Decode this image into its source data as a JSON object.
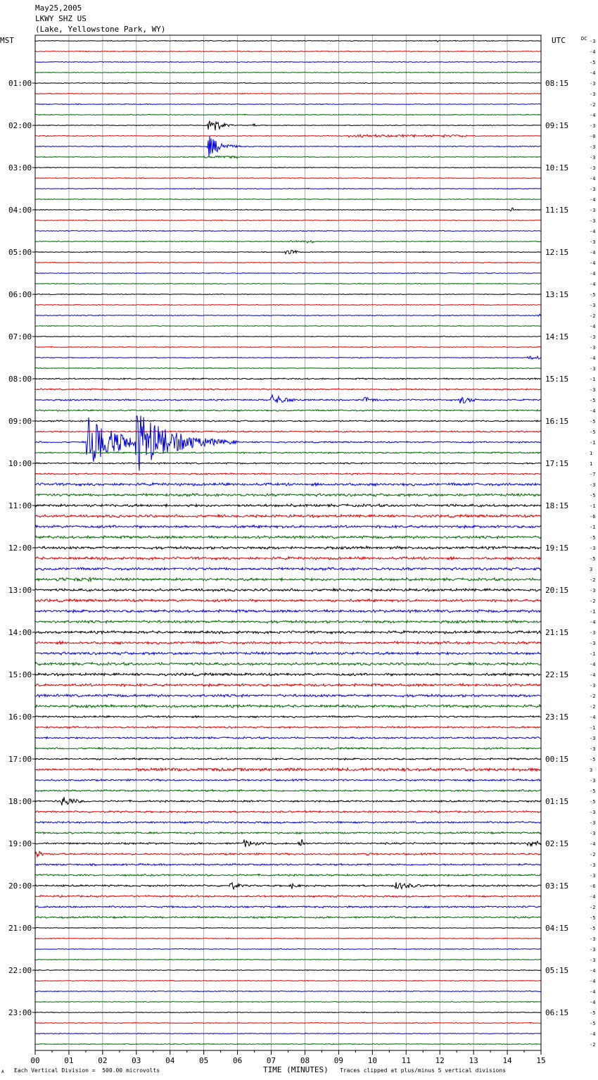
{
  "header": {
    "date": "May25,2005",
    "station": "LKWY SHZ US",
    "location": "(Lake, Yellowstone Park, WY)"
  },
  "labels": {
    "left_tz": "MST",
    "right_tz": "UTC",
    "dc": "DC"
  },
  "footer": {
    "scale_note": "Each Vertical Division =  500.00 microvolts",
    "xlabel": "TIME (MINUTES)",
    "clip_note": "Traces clipped at plus/minus 5 vertical divisions",
    "corner_mark": "A"
  },
  "chart_data": {
    "type": "line",
    "title": "LKWY SHZ US",
    "xlabel": "TIME (MINUTES)",
    "xlim": [
      0,
      15
    ],
    "x_ticks": [
      "00",
      "01",
      "02",
      "03",
      "04",
      "05",
      "06",
      "07",
      "08",
      "09",
      "10",
      "11",
      "12",
      "13",
      "14",
      "15"
    ],
    "trace_minutes": 15,
    "trace_colors": [
      "#000000",
      "#dd0000",
      "#0000dd",
      "#006600"
    ],
    "left_hour_labels": [
      "01:00",
      "02:00",
      "03:00",
      "04:00",
      "05:00",
      "06:00",
      "07:00",
      "08:00",
      "09:00",
      "10:00",
      "11:00",
      "12:00",
      "13:00",
      "14:00",
      "15:00",
      "16:00",
      "17:00",
      "18:00",
      "19:00",
      "20:00",
      "21:00",
      "22:00",
      "23:00"
    ],
    "right_hour_labels": [
      "08:15",
      "09:15",
      "10:15",
      "11:15",
      "12:15",
      "13:15",
      "14:15",
      "15:15",
      "16:15",
      "17:15",
      "18:15",
      "19:15",
      "20:15",
      "21:15",
      "22:15",
      "23:15",
      "00:15",
      "01:15",
      "02:15",
      "03:15",
      "04:15",
      "05:15",
      "06:15"
    ],
    "dc_offsets": [
      "-3",
      "-4",
      "-5",
      "-4",
      "-3",
      "-3",
      "-2",
      "-4",
      "-3",
      "-0",
      "-3",
      "-3",
      "-3",
      "-4",
      "-3",
      "-4",
      "-3",
      "-3",
      "-4",
      "-3",
      "-4",
      "-4",
      "-4",
      "-4",
      "-5",
      "-3",
      "-2",
      "-4",
      "-3",
      "-3",
      "-4",
      "-3",
      "-1",
      "-3",
      "-5",
      "-4",
      "-5",
      "-5",
      "-1",
      "1",
      "1",
      "-7",
      "-3",
      "-5",
      "-1",
      "-6",
      "-1",
      "-5",
      "-3",
      "-5",
      "3",
      "-2",
      "-3",
      "-2",
      "-1",
      "-4",
      "-3",
      "-3",
      "-1",
      "-4",
      "-4",
      "-3",
      "-2",
      "-2",
      "-4",
      "-1",
      "-3",
      "-3",
      "-5",
      "3",
      "-3",
      "-5",
      "-5",
      "-3",
      "-3",
      "-3",
      "-4",
      "-2",
      "-3",
      "-3",
      "-6",
      "-4",
      "-2",
      "-5",
      "-5",
      "-3",
      "-3",
      "-3",
      "-4",
      "-4",
      "-4",
      "-4",
      "-5",
      "-5",
      "-4",
      "-2"
    ],
    "events": [
      {
        "trace": 0,
        "minute": 11.9,
        "amp": 3.0,
        "dur": 0.08,
        "kind": "spike"
      },
      {
        "trace": 6,
        "minute": 6.3,
        "amp": 0.6,
        "dur": 0.05,
        "kind": "spike"
      },
      {
        "trace": 8,
        "minute": 5.15,
        "amp": 18,
        "dur": 0.25,
        "kind": "quake"
      },
      {
        "trace": 8,
        "minute": 6.5,
        "amp": 2.5,
        "dur": 0.1,
        "kind": "spike"
      },
      {
        "trace": 9,
        "minute": 9.3,
        "amp": 2.0,
        "dur": 2.0,
        "kind": "burst"
      },
      {
        "trace": 9,
        "minute": 11.5,
        "amp": 2.0,
        "dur": 1.3,
        "kind": "burst"
      },
      {
        "trace": 10,
        "minute": 5.15,
        "amp": 16,
        "dur": 0.35,
        "kind": "quake"
      },
      {
        "trace": 11,
        "minute": 5.0,
        "amp": 2.0,
        "dur": 1.0,
        "kind": "burst"
      },
      {
        "trace": 16,
        "minute": 14.15,
        "amp": 4.0,
        "dur": 0.1,
        "kind": "spike"
      },
      {
        "trace": 19,
        "minute": 7.5,
        "amp": 2.0,
        "dur": 0.8,
        "kind": "burst"
      },
      {
        "trace": 20,
        "minute": 7.4,
        "amp": 4.0,
        "dur": 0.4,
        "kind": "burst"
      },
      {
        "trace": 26,
        "minute": 14.9,
        "amp": 3.0,
        "dur": 0.15,
        "kind": "burst"
      },
      {
        "trace": 30,
        "minute": 14.6,
        "amp": 2.5,
        "dur": 0.4,
        "kind": "burst"
      },
      {
        "trace": 34,
        "minute": 7.0,
        "amp": 8.0,
        "dur": 0.5,
        "kind": "quake"
      },
      {
        "trace": 34,
        "minute": 9.75,
        "amp": 5.0,
        "dur": 0.35,
        "kind": "quake"
      },
      {
        "trace": 34,
        "minute": 12.6,
        "amp": 6.0,
        "dur": 0.4,
        "kind": "quake"
      },
      {
        "trace": 38,
        "minute": 1.55,
        "amp": 40,
        "dur": 0.8,
        "kind": "quake"
      },
      {
        "trace": 38,
        "minute": 3.0,
        "amp": 45,
        "dur": 1.0,
        "kind": "quake"
      },
      {
        "trace": 38,
        "minute": 14.4,
        "amp": 3.0,
        "dur": 0.1,
        "kind": "spike"
      },
      {
        "trace": 51,
        "minute": 0.6,
        "amp": 3.0,
        "dur": 1.2,
        "kind": "burst"
      },
      {
        "trace": 69,
        "minute": 3.0,
        "amp": 2.5,
        "dur": 12.0,
        "kind": "burst"
      },
      {
        "trace": 72,
        "minute": 0.8,
        "amp": 9.0,
        "dur": 0.35,
        "kind": "quake"
      },
      {
        "trace": 76,
        "minute": 6.2,
        "amp": 6.0,
        "dur": 0.4,
        "kind": "quake"
      },
      {
        "trace": 76,
        "minute": 7.9,
        "amp": 8.0,
        "dur": 0.15,
        "kind": "spike"
      },
      {
        "trace": 76,
        "minute": 14.6,
        "amp": 4.0,
        "dur": 0.5,
        "kind": "burst"
      },
      {
        "trace": 77,
        "minute": 0.1,
        "amp": 5.0,
        "dur": 0.2,
        "kind": "spike"
      },
      {
        "trace": 77,
        "minute": 9.9,
        "amp": 4.0,
        "dur": 0.1,
        "kind": "spike"
      },
      {
        "trace": 80,
        "minute": 5.8,
        "amp": 7.0,
        "dur": 0.25,
        "kind": "quake"
      },
      {
        "trace": 80,
        "minute": 7.6,
        "amp": 5.0,
        "dur": 0.2,
        "kind": "quake"
      },
      {
        "trace": 80,
        "minute": 10.7,
        "amp": 6.0,
        "dur": 0.6,
        "kind": "quake"
      }
    ]
  }
}
